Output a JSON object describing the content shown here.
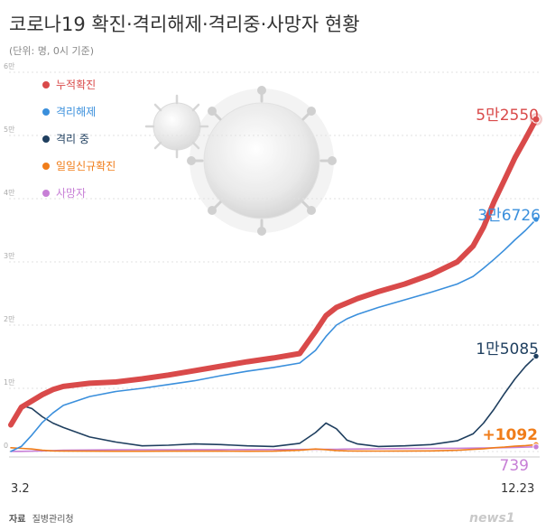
{
  "chart_data": {
    "type": "line",
    "title": "코로나19 확진·격리해제·격리중·사망자 현황",
    "subtitle": "(단위: 명, 0시 기준)",
    "y_unit_label": "만",
    "ylim": [
      0,
      60000
    ],
    "y_ticks": [
      {
        "value": 0,
        "label": "0"
      },
      {
        "value": 10000,
        "label": "1만"
      },
      {
        "value": 20000,
        "label": "2만"
      },
      {
        "value": 30000,
        "label": "3만"
      },
      {
        "value": 40000,
        "label": "4만"
      },
      {
        "value": 50000,
        "label": "5만"
      },
      {
        "value": 60000,
        "label": "6만"
      }
    ],
    "x_tick_labels": [
      "3.2",
      "12.23"
    ],
    "legend_position": "top-left",
    "grid": true,
    "x": [
      0,
      0.02,
      0.04,
      0.06,
      0.08,
      0.1,
      0.15,
      0.2,
      0.25,
      0.3,
      0.35,
      0.4,
      0.45,
      0.5,
      0.55,
      0.58,
      0.6,
      0.62,
      0.64,
      0.66,
      0.7,
      0.75,
      0.8,
      0.85,
      0.88,
      0.9,
      0.92,
      0.94,
      0.96,
      0.98,
      1.0
    ],
    "series": [
      {
        "name": "누적확진",
        "color": "#d94a4a",
        "end_label": "5만2550",
        "values": [
          4212,
          7000,
          8000,
          9000,
          9800,
          10300,
          10800,
          11000,
          11500,
          12100,
          12800,
          13500,
          14200,
          14800,
          15500,
          19000,
          21500,
          22800,
          23500,
          24200,
          25300,
          26500,
          28000,
          30000,
          32500,
          35500,
          39500,
          43000,
          46500,
          49500,
          52550
        ]
      },
      {
        "name": "격리해제",
        "color": "#3a8fdc",
        "end_label": "3만6726",
        "values": [
          22,
          800,
          2600,
          4600,
          6100,
          7300,
          8700,
          9500,
          10000,
          10600,
          11200,
          12000,
          12700,
          13300,
          14000,
          16000,
          18200,
          20000,
          21000,
          21700,
          22800,
          24000,
          25200,
          26500,
          27700,
          29000,
          30400,
          31900,
          33500,
          35000,
          36726
        ]
      },
      {
        "name": "격리 중",
        "color": "#1f3f5f",
        "end_label": "1만5085",
        "values": [
          4162,
          7300,
          6800,
          5500,
          4500,
          3800,
          2300,
          1500,
          900,
          1000,
          1200,
          1100,
          900,
          800,
          1300,
          3000,
          4500,
          3600,
          1800,
          1200,
          800,
          900,
          1100,
          1700,
          2800,
          4500,
          6700,
          9200,
          11500,
          13500,
          15085
        ]
      },
      {
        "name": "일일신규확진",
        "color": "#f07d1a",
        "end_label": "+1092",
        "values": [
          600,
          500,
          400,
          200,
          100,
          80,
          50,
          40,
          40,
          50,
          60,
          50,
          40,
          60,
          200,
          400,
          300,
          150,
          100,
          80,
          70,
          90,
          100,
          200,
          350,
          450,
          600,
          700,
          850,
          950,
          1092
        ]
      },
      {
        "name": "사망자",
        "color": "#c77fd6",
        "end_label": "739",
        "values": [
          22,
          30,
          60,
          100,
          150,
          200,
          250,
          270,
          280,
          290,
          300,
          300,
          310,
          320,
          330,
          340,
          350,
          360,
          380,
          400,
          430,
          470,
          500,
          520,
          540,
          560,
          580,
          610,
          650,
          700,
          739
        ]
      }
    ]
  },
  "source": {
    "label": "자료",
    "name": "질병관리청"
  },
  "watermark": {
    "text": "news1"
  }
}
